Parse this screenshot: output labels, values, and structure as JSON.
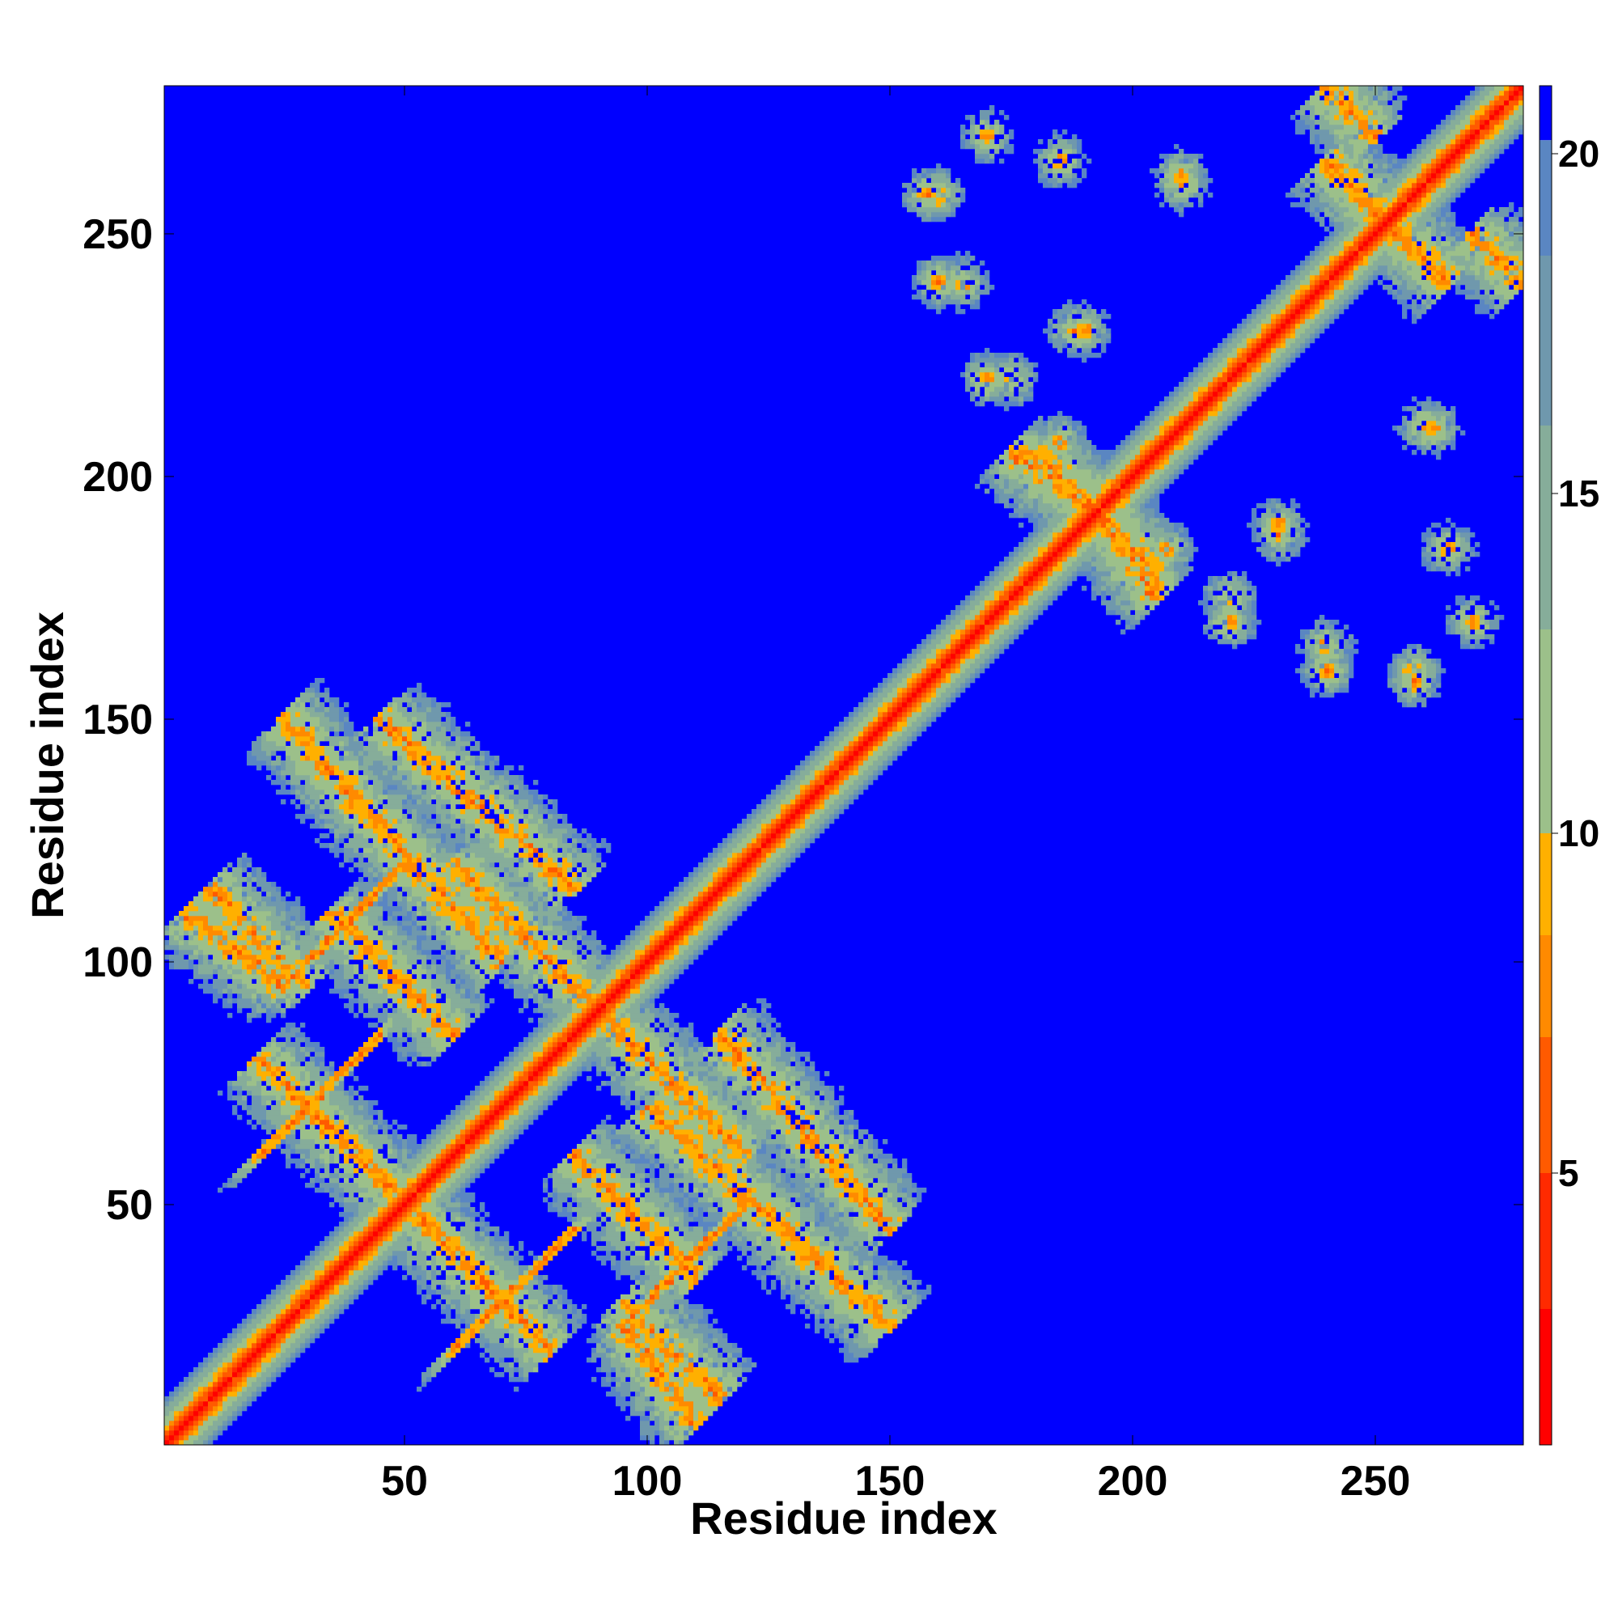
{
  "chart_data": {
    "type": "heatmap",
    "title": "",
    "xlabel": "Residue index",
    "ylabel": "Residue index",
    "n_residues": 280,
    "xlim": [
      1,
      280
    ],
    "ylim": [
      1,
      280
    ],
    "x_ticks": [
      50,
      100,
      150,
      200,
      250
    ],
    "y_ticks": [
      50,
      100,
      150,
      200,
      250
    ],
    "matrix": "symmetric residue-residue distance map",
    "colorbar": {
      "vmin": 1,
      "vmax": 21,
      "ticks": [
        5,
        10,
        15,
        20
      ],
      "colors": [
        "#ff0000",
        "#ff2a00",
        "#ff5a00",
        "#ff8a00",
        "#ffb000",
        "#9cc08a",
        "#86ad9a",
        "#6f98ad",
        "#5a86c2",
        "#0000ff"
      ],
      "boundaries": [
        1,
        3,
        5,
        7,
        8.5,
        10,
        13,
        16,
        18.5,
        20.2,
        21
      ]
    },
    "domains": [
      {
        "name": "",
        "start": 1,
        "end": 155,
        "contacts": [
          {
            "type": "antiparallel",
            "i1": 10,
            "i2": 30,
            "j1": 115,
            "j2": 95
          },
          {
            "type": "antiparallel",
            "i1": 20,
            "i2": 50,
            "j1": 80,
            "j2": 50
          },
          {
            "type": "antiparallel",
            "i1": 35,
            "i2": 60,
            "j1": 110,
            "j2": 85
          },
          {
            "type": "antiparallel",
            "i1": 45,
            "i2": 85,
            "j1": 150,
            "j2": 115
          },
          {
            "type": "antiparallel",
            "i1": 95,
            "i2": 110,
            "j1": 25,
            "j2": 5
          },
          {
            "type": "antiparallel",
            "i1": 100,
            "i2": 150,
            "j1": 70,
            "j2": 25
          },
          {
            "type": "antiparallel",
            "i1": 60,
            "i2": 90,
            "j1": 120,
            "j2": 90
          },
          {
            "type": "parallel",
            "i1": 30,
            "i2": 50,
            "j1": 100,
            "j2": 120
          },
          {
            "type": "parallel",
            "i1": 20,
            "i2": 45,
            "j1": 60,
            "j2": 85
          }
        ]
      },
      {
        "name": "",
        "start": 155,
        "end": 280,
        "contacts": [
          {
            "type": "antiparallel",
            "i1": 180,
            "i2": 195,
            "j1": 205,
            "j2": 190
          },
          {
            "type": "antiparallel",
            "i1": 195,
            "i2": 205,
            "j1": 190,
            "j2": 175
          },
          {
            "type": "antiparallel",
            "i1": 240,
            "i2": 255,
            "j1": 265,
            "j2": 250
          },
          {
            "type": "antiparallel",
            "i1": 240,
            "i2": 250,
            "j1": 280,
            "j2": 270
          },
          {
            "type": "blob",
            "i": 160,
            "j": 240
          },
          {
            "type": "blob",
            "i": 158,
            "j": 258
          },
          {
            "type": "blob",
            "i": 210,
            "j": 262
          },
          {
            "type": "blob",
            "i": 190,
            "j": 230
          },
          {
            "type": "blob",
            "i": 185,
            "j": 207
          },
          {
            "type": "blob",
            "i": 230,
            "j": 188
          },
          {
            "type": "blob",
            "i": 240,
            "j": 165
          },
          {
            "type": "blob",
            "i": 260,
            "j": 210
          },
          {
            "type": "blob",
            "i": 175,
            "j": 220
          },
          {
            "type": "blob",
            "i": 220,
            "j": 170
          },
          {
            "type": "blob",
            "i": 275,
            "j": 245
          },
          {
            "type": "blob",
            "i": 258,
            "j": 160
          },
          {
            "type": "blob",
            "i": 265,
            "j": 185
          },
          {
            "type": "blob",
            "i": 170,
            "j": 270
          }
        ]
      }
    ]
  }
}
